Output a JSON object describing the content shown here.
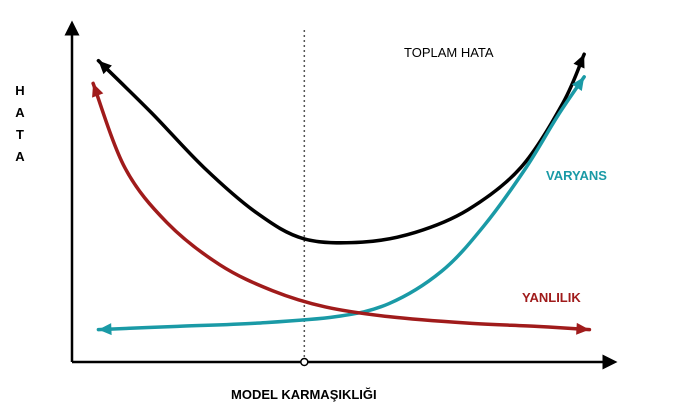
{
  "chart_data": {
    "type": "line",
    "title": "",
    "xlabel": "MODEL KARMAŞIKLIĞI",
    "ylabel": "HATA",
    "grid": false,
    "series": [
      {
        "name": "TOPLAM HATA",
        "color": "#000000",
        "points": [
          [
            0.05,
            0.93
          ],
          [
            0.15,
            0.77
          ],
          [
            0.25,
            0.6
          ],
          [
            0.35,
            0.46
          ],
          [
            0.44,
            0.38
          ],
          [
            0.55,
            0.37
          ],
          [
            0.65,
            0.4
          ],
          [
            0.75,
            0.47
          ],
          [
            0.85,
            0.6
          ],
          [
            0.93,
            0.8
          ],
          [
            0.97,
            0.95
          ]
        ]
      },
      {
        "name": "VARYANS",
        "color": "#1a9aa6",
        "points": [
          [
            0.05,
            0.1
          ],
          [
            0.2,
            0.11
          ],
          [
            0.35,
            0.12
          ],
          [
            0.5,
            0.14
          ],
          [
            0.6,
            0.18
          ],
          [
            0.7,
            0.28
          ],
          [
            0.78,
            0.42
          ],
          [
            0.86,
            0.6
          ],
          [
            0.92,
            0.76
          ],
          [
            0.97,
            0.88
          ]
        ]
      },
      {
        "name": "YANLILIK",
        "color": "#a01b1b",
        "points": [
          [
            0.04,
            0.86
          ],
          [
            0.1,
            0.6
          ],
          [
            0.18,
            0.43
          ],
          [
            0.28,
            0.3
          ],
          [
            0.38,
            0.22
          ],
          [
            0.48,
            0.17
          ],
          [
            0.6,
            0.14
          ],
          [
            0.75,
            0.12
          ],
          [
            0.88,
            0.11
          ],
          [
            0.98,
            0.1
          ]
        ]
      }
    ],
    "vline": {
      "x": 0.44
    },
    "colors": {
      "axis": "#000000",
      "vline": "#555555"
    }
  }
}
